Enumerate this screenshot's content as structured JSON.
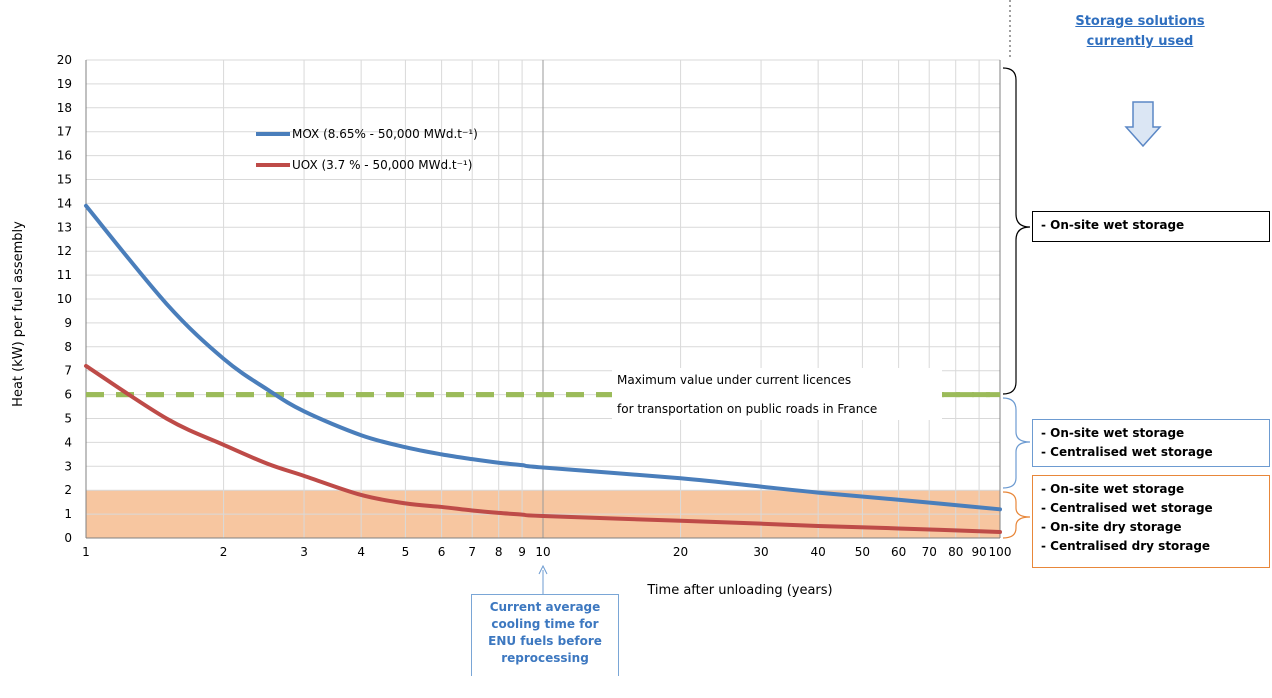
{
  "chart_data": {
    "type": "line",
    "xscale": "log",
    "xlim": [
      1,
      100
    ],
    "ylim": [
      0,
      20
    ],
    "xlabel": "Time after unloading (years)",
    "ylabel": "Heat (kW) per fuel assembly",
    "xticks": [
      1,
      2,
      3,
      4,
      5,
      6,
      7,
      8,
      9,
      10,
      20,
      30,
      40,
      50,
      60,
      70,
      80,
      90,
      100
    ],
    "yticks": [
      0,
      1,
      2,
      3,
      4,
      5,
      6,
      7,
      8,
      9,
      10,
      11,
      12,
      13,
      14,
      15,
      16,
      17,
      18,
      19,
      20
    ],
    "grid": true,
    "legend_position": "top-left",
    "series": [
      {
        "name": "MOX (8.65% - 50,000 MWd.t⁻¹)",
        "color": "#4a7ebb",
        "x": [
          1,
          1.5,
          2,
          2.5,
          3,
          4,
          5,
          6,
          7,
          8,
          9,
          10,
          20,
          30,
          40,
          60,
          100
        ],
        "y": [
          13.9,
          9.8,
          7.5,
          6.2,
          5.3,
          4.3,
          3.8,
          3.5,
          3.3,
          3.15,
          3.05,
          2.95,
          2.5,
          2.15,
          1.9,
          1.6,
          1.2
        ]
      },
      {
        "name": "UOX (3.7 % - 50,000 MWd.t⁻¹)",
        "color": "#be4b48",
        "x": [
          1,
          1.5,
          2,
          2.5,
          3,
          4,
          5,
          6,
          7,
          8,
          9,
          10,
          20,
          30,
          40,
          60,
          100
        ],
        "y": [
          7.2,
          5.0,
          3.9,
          3.1,
          2.6,
          1.8,
          1.45,
          1.3,
          1.15,
          1.05,
          0.98,
          0.92,
          0.72,
          0.6,
          0.5,
          0.4,
          0.25
        ]
      }
    ],
    "threshold": {
      "value": 6,
      "color": "#9bbb59",
      "label_lines": [
        "Maximum value under current licences",
        "for transportation on public roads in France"
      ]
    },
    "shaded_band": {
      "y_from": 0,
      "y_to": 2,
      "color": "#f7c6a0"
    }
  },
  "storage": {
    "header_lines": [
      "Storage solutions",
      "currently used"
    ],
    "arrow_icon": "down-arrow",
    "groups": [
      {
        "lines": [
          "- On-site wet storage"
        ],
        "color": "#000000"
      },
      {
        "lines": [
          "- On-site wet storage",
          "- Centralised wet storage"
        ],
        "color": "#6d9bd1"
      },
      {
        "lines": [
          "- On-site wet storage",
          "- Centralised wet storage",
          "- On-site dry storage",
          "- Centralised dry storage"
        ],
        "color": "#e8873a"
      }
    ]
  },
  "cooling_note": {
    "lines": [
      "Current average",
      "cooling time for",
      "ENU fuels before",
      "reprocessing"
    ],
    "x_value": 10
  }
}
